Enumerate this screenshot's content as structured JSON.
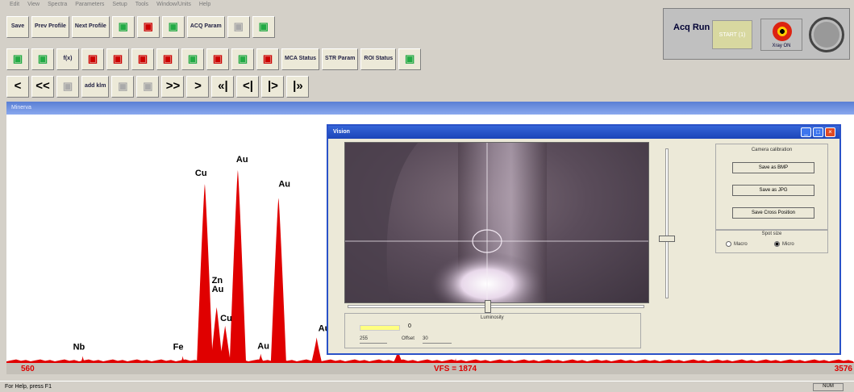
{
  "menu": [
    "Edit",
    "View",
    "Spectra",
    "Parameters",
    "Setup",
    "Tools",
    "Window/Units",
    "Help"
  ],
  "toolbar1": [
    {
      "name": "save",
      "label": "Save",
      "color": "blue"
    },
    {
      "name": "prev-profile",
      "label": "Prev Profile",
      "color": "blue"
    },
    {
      "name": "next-profile",
      "label": "Next Profile",
      "color": "blue"
    },
    {
      "name": "tool-a",
      "label": "",
      "color": "blue"
    },
    {
      "name": "tool-b",
      "label": "",
      "color": "red"
    },
    {
      "name": "acquire",
      "label": "",
      "color": "blue"
    },
    {
      "name": "acq-param",
      "label": "ACQ Param",
      "color": "blue"
    },
    {
      "name": "tool-c",
      "label": "",
      "color": "dim"
    },
    {
      "name": "tool-d",
      "label": "",
      "color": "blue"
    }
  ],
  "toolbar2": [
    {
      "name": "t1",
      "label": "",
      "color": "blue"
    },
    {
      "name": "t2",
      "label": "",
      "color": "blue"
    },
    {
      "name": "fx",
      "label": "f(x)",
      "color": "blue"
    },
    {
      "name": "t4",
      "label": "",
      "color": "red"
    },
    {
      "name": "t5",
      "label": "",
      "color": "red"
    },
    {
      "name": "t6",
      "label": "",
      "color": "red"
    },
    {
      "name": "t7",
      "label": "",
      "color": "red"
    },
    {
      "name": "t8",
      "label": "",
      "color": "blue"
    },
    {
      "name": "t9",
      "label": "",
      "color": "red"
    },
    {
      "name": "t10",
      "label": "",
      "color": "blue"
    },
    {
      "name": "t11",
      "label": "",
      "color": "red"
    },
    {
      "name": "mca-status",
      "label": "MCA Status",
      "color": "blue"
    },
    {
      "name": "str-param",
      "label": "STR Param",
      "color": "blue"
    },
    {
      "name": "roi-status",
      "label": "ROI Status",
      "color": "blue"
    },
    {
      "name": "print",
      "label": "",
      "color": "blue"
    }
  ],
  "toolbar3": [
    {
      "name": "step-left",
      "label": "<",
      "color": "big"
    },
    {
      "name": "fast-left",
      "label": "<<",
      "color": "big"
    },
    {
      "name": "kl-left",
      "label": "",
      "color": "dim"
    },
    {
      "name": "add-klm",
      "label": "add klm",
      "color": "blue"
    },
    {
      "name": "kl-mid",
      "label": "",
      "color": "dim"
    },
    {
      "name": "kl-right",
      "label": "",
      "color": "dim"
    },
    {
      "name": "fast-right",
      "label": ">>",
      "color": "big"
    },
    {
      "name": "step-right",
      "label": ">",
      "color": "big"
    },
    {
      "name": "cursor-a",
      "label": "«|",
      "color": "big"
    },
    {
      "name": "cursor-b",
      "label": "<|",
      "color": "big"
    },
    {
      "name": "cursor-c",
      "label": "|>",
      "color": "big"
    },
    {
      "name": "cursor-d",
      "label": "|»",
      "color": "big"
    }
  ],
  "acq": {
    "label": "Acq Run",
    "start": "START (1)",
    "xray": "Xray ON"
  },
  "spectrum": {
    "header": "Minerva",
    "axis_left": "560",
    "axis_mid": "VFS = 1874",
    "axis_right": "3576"
  },
  "chart_data": {
    "type": "line",
    "series_color": "#e00000",
    "xlim": [
      0,
      1000
    ],
    "ylim": [
      0,
      100
    ],
    "peaks": [
      {
        "label": "Nb",
        "x": 90,
        "height": 3
      },
      {
        "label": "Fe",
        "x": 208,
        "height": 3
      },
      {
        "label": "Zn Au",
        "x": 248,
        "height": 24
      },
      {
        "label": "Cu",
        "x": 234,
        "height": 77
      },
      {
        "label": "Au",
        "x": 273,
        "height": 83
      },
      {
        "label": "Cu",
        "x": 258,
        "height": 16
      },
      {
        "label": "Au",
        "x": 300,
        "height": 4
      },
      {
        "label": "Au",
        "x": 321,
        "height": 71
      },
      {
        "label": "Au",
        "x": 366,
        "height": 11
      },
      {
        "label": "",
        "x": 462,
        "height": 6
      },
      {
        "label": "",
        "x": 530,
        "height": 2
      }
    ]
  },
  "vision": {
    "title": "Vision",
    "calibration_title": "Camera calibration",
    "save_bmp": "Save as BMP",
    "save_jpg": "Save as JPG",
    "save_cross": "Save Cross Position",
    "spot_title": "Spot size",
    "macro": "Macro",
    "micro": "Micro",
    "luminosity": "Luminosity",
    "lum_value": "0",
    "lum_field": "255",
    "offset_label": "Offset",
    "offset_value": "30"
  },
  "status": {
    "help": "For Help, press F1",
    "num": "NUM"
  }
}
